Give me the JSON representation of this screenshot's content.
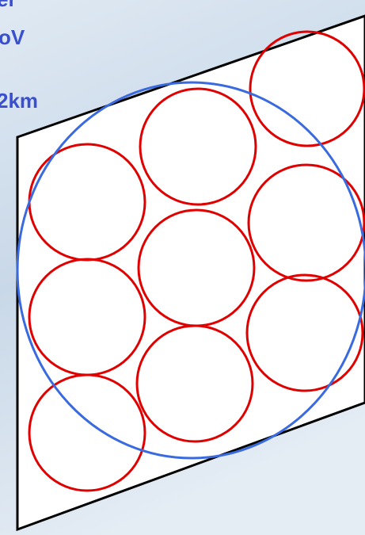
{
  "labels": [
    "er",
    "oV",
    "2km"
  ]
}
